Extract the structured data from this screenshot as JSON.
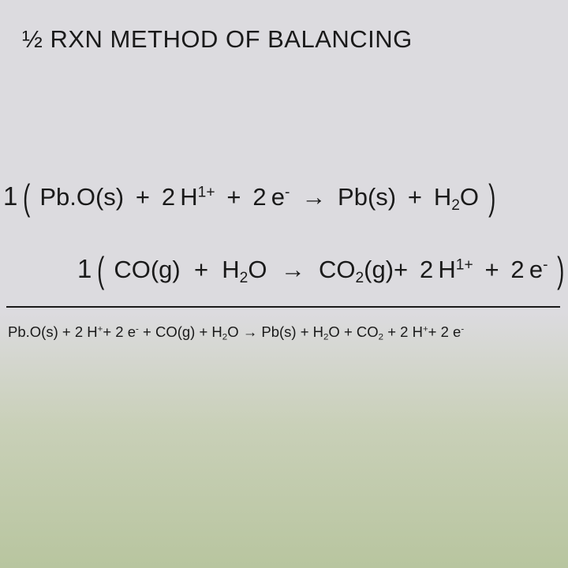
{
  "slide": {
    "title": "½ RXN METHOD OF BALANCING",
    "background": {
      "top_color": "#dcdbdf",
      "bottom_color": "#b8c59f",
      "type": "vertical-gradient"
    },
    "equations": {
      "eq1": {
        "coefficient": "1",
        "tokens": {
          "t0": "Pb.O(s)",
          "t1": "+",
          "t2": "2",
          "t3": "H",
          "t3_sup": "1+",
          "t4": "+",
          "t5": "2",
          "t6": "e",
          "t6_sup": "-",
          "t7": "→",
          "t8": "Pb(s)",
          "t9": "+",
          "t10": "H",
          "t10_sub": "2",
          "t11": "O"
        }
      },
      "eq2": {
        "coefficient": "1",
        "tokens": {
          "t0": "CO(g)",
          "t1": "+",
          "t2": "H",
          "t2_sub": "2",
          "t3": "O",
          "t4": "→",
          "t5": "CO",
          "t5_sub": "2",
          "t6": "(g)",
          "t7": "+",
          "t8": "2",
          "t9": "H",
          "t9_sup": "1+",
          "t10": "+",
          "t11": "2",
          "t12": "e",
          "t12_sup": "-"
        }
      },
      "eq3": {
        "tokens": {
          "t0": "Pb.O(s)",
          "t1": "+",
          "t2": "2",
          "t3": "H",
          "t3_sup": "+",
          "t4": "+",
          "t5": "2",
          "t6": "e",
          "t6_sup": "-",
          "t7": "+",
          "t8": "CO(g)",
          "t9": "+",
          "t10": "H",
          "t10_sub": "2",
          "t11": "O",
          "t12": "→",
          "t13": "Pb(s)",
          "t14": "+",
          "t15": "H",
          "t15_sub": "2",
          "t16": "O",
          "t17": "+",
          "t18": "CO",
          "t18_sub": "2",
          "t19": "+",
          "t20": "2",
          "t21": "H",
          "t21_sup": "+",
          "t22": "+",
          "t23": "2",
          "t24": "e",
          "t24_sup": "-"
        }
      }
    },
    "font": {
      "title_size": 31,
      "eq_main_size": 31,
      "eq_sum_size": 18.5,
      "color": "#1a1a1a"
    }
  }
}
